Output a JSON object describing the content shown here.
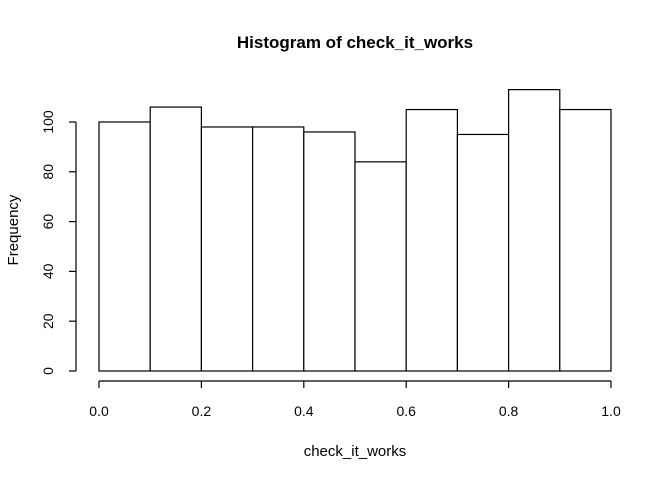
{
  "chart_data": {
    "type": "bar",
    "title": "Histogram of check_it_works",
    "xlabel": "check_it_works",
    "ylabel": "Frequency",
    "bin_edges": [
      0.0,
      0.1,
      0.2,
      0.3,
      0.4,
      0.5,
      0.6,
      0.7,
      0.8,
      0.9,
      1.0
    ],
    "values": [
      100,
      106,
      98,
      98,
      96,
      84,
      105,
      95,
      113,
      105
    ],
    "xlim": [
      0.0,
      1.0
    ],
    "ylim": [
      0,
      113
    ],
    "x_ticks": [
      0.0,
      0.2,
      0.4,
      0.6,
      0.8,
      1.0
    ],
    "x_tick_labels": [
      "0.0",
      "0.2",
      "0.4",
      "0.6",
      "0.8",
      "1.0"
    ],
    "y_ticks": [
      0,
      20,
      40,
      60,
      80,
      100
    ],
    "y_tick_labels": [
      "0",
      "20",
      "40",
      "60",
      "80",
      "100"
    ],
    "grid": false,
    "legend": "none"
  }
}
